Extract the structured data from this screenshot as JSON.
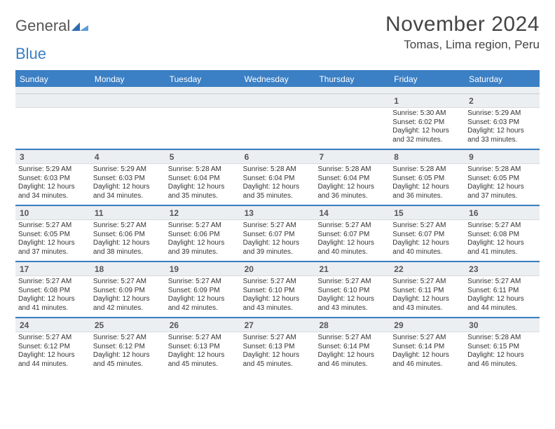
{
  "logo": {
    "part1": "General",
    "part2": "Blue"
  },
  "title": "November 2024",
  "location": "Tomas, Lima region, Peru",
  "colors": {
    "header_bar": "#3b7fc4",
    "band": "#eceff2",
    "text": "#333333",
    "title_text": "#444444"
  },
  "typography": {
    "title_fontsize": 30,
    "location_fontsize": 17,
    "weekday_fontsize": 12,
    "daynum_fontsize": 12,
    "detail_fontsize": 10
  },
  "weekdays": [
    "Sunday",
    "Monday",
    "Tuesday",
    "Wednesday",
    "Thursday",
    "Friday",
    "Saturday"
  ],
  "weeks": [
    [
      {
        "blank": true
      },
      {
        "blank": true
      },
      {
        "blank": true
      },
      {
        "blank": true
      },
      {
        "blank": true
      },
      {
        "day": "1",
        "sunrise": "Sunrise: 5:30 AM",
        "sunset": "Sunset: 6:02 PM",
        "daylight1": "Daylight: 12 hours",
        "daylight2": "and 32 minutes."
      },
      {
        "day": "2",
        "sunrise": "Sunrise: 5:29 AM",
        "sunset": "Sunset: 6:03 PM",
        "daylight1": "Daylight: 12 hours",
        "daylight2": "and 33 minutes."
      }
    ],
    [
      {
        "day": "3",
        "sunrise": "Sunrise: 5:29 AM",
        "sunset": "Sunset: 6:03 PM",
        "daylight1": "Daylight: 12 hours",
        "daylight2": "and 34 minutes."
      },
      {
        "day": "4",
        "sunrise": "Sunrise: 5:29 AM",
        "sunset": "Sunset: 6:03 PM",
        "daylight1": "Daylight: 12 hours",
        "daylight2": "and 34 minutes."
      },
      {
        "day": "5",
        "sunrise": "Sunrise: 5:28 AM",
        "sunset": "Sunset: 6:04 PM",
        "daylight1": "Daylight: 12 hours",
        "daylight2": "and 35 minutes."
      },
      {
        "day": "6",
        "sunrise": "Sunrise: 5:28 AM",
        "sunset": "Sunset: 6:04 PM",
        "daylight1": "Daylight: 12 hours",
        "daylight2": "and 35 minutes."
      },
      {
        "day": "7",
        "sunrise": "Sunrise: 5:28 AM",
        "sunset": "Sunset: 6:04 PM",
        "daylight1": "Daylight: 12 hours",
        "daylight2": "and 36 minutes."
      },
      {
        "day": "8",
        "sunrise": "Sunrise: 5:28 AM",
        "sunset": "Sunset: 6:05 PM",
        "daylight1": "Daylight: 12 hours",
        "daylight2": "and 36 minutes."
      },
      {
        "day": "9",
        "sunrise": "Sunrise: 5:28 AM",
        "sunset": "Sunset: 6:05 PM",
        "daylight1": "Daylight: 12 hours",
        "daylight2": "and 37 minutes."
      }
    ],
    [
      {
        "day": "10",
        "sunrise": "Sunrise: 5:27 AM",
        "sunset": "Sunset: 6:05 PM",
        "daylight1": "Daylight: 12 hours",
        "daylight2": "and 37 minutes."
      },
      {
        "day": "11",
        "sunrise": "Sunrise: 5:27 AM",
        "sunset": "Sunset: 6:06 PM",
        "daylight1": "Daylight: 12 hours",
        "daylight2": "and 38 minutes."
      },
      {
        "day": "12",
        "sunrise": "Sunrise: 5:27 AM",
        "sunset": "Sunset: 6:06 PM",
        "daylight1": "Daylight: 12 hours",
        "daylight2": "and 39 minutes."
      },
      {
        "day": "13",
        "sunrise": "Sunrise: 5:27 AM",
        "sunset": "Sunset: 6:07 PM",
        "daylight1": "Daylight: 12 hours",
        "daylight2": "and 39 minutes."
      },
      {
        "day": "14",
        "sunrise": "Sunrise: 5:27 AM",
        "sunset": "Sunset: 6:07 PM",
        "daylight1": "Daylight: 12 hours",
        "daylight2": "and 40 minutes."
      },
      {
        "day": "15",
        "sunrise": "Sunrise: 5:27 AM",
        "sunset": "Sunset: 6:07 PM",
        "daylight1": "Daylight: 12 hours",
        "daylight2": "and 40 minutes."
      },
      {
        "day": "16",
        "sunrise": "Sunrise: 5:27 AM",
        "sunset": "Sunset: 6:08 PM",
        "daylight1": "Daylight: 12 hours",
        "daylight2": "and 41 minutes."
      }
    ],
    [
      {
        "day": "17",
        "sunrise": "Sunrise: 5:27 AM",
        "sunset": "Sunset: 6:08 PM",
        "daylight1": "Daylight: 12 hours",
        "daylight2": "and 41 minutes."
      },
      {
        "day": "18",
        "sunrise": "Sunrise: 5:27 AM",
        "sunset": "Sunset: 6:09 PM",
        "daylight1": "Daylight: 12 hours",
        "daylight2": "and 42 minutes."
      },
      {
        "day": "19",
        "sunrise": "Sunrise: 5:27 AM",
        "sunset": "Sunset: 6:09 PM",
        "daylight1": "Daylight: 12 hours",
        "daylight2": "and 42 minutes."
      },
      {
        "day": "20",
        "sunrise": "Sunrise: 5:27 AM",
        "sunset": "Sunset: 6:10 PM",
        "daylight1": "Daylight: 12 hours",
        "daylight2": "and 43 minutes."
      },
      {
        "day": "21",
        "sunrise": "Sunrise: 5:27 AM",
        "sunset": "Sunset: 6:10 PM",
        "daylight1": "Daylight: 12 hours",
        "daylight2": "and 43 minutes."
      },
      {
        "day": "22",
        "sunrise": "Sunrise: 5:27 AM",
        "sunset": "Sunset: 6:11 PM",
        "daylight1": "Daylight: 12 hours",
        "daylight2": "and 43 minutes."
      },
      {
        "day": "23",
        "sunrise": "Sunrise: 5:27 AM",
        "sunset": "Sunset: 6:11 PM",
        "daylight1": "Daylight: 12 hours",
        "daylight2": "and 44 minutes."
      }
    ],
    [
      {
        "day": "24",
        "sunrise": "Sunrise: 5:27 AM",
        "sunset": "Sunset: 6:12 PM",
        "daylight1": "Daylight: 12 hours",
        "daylight2": "and 44 minutes."
      },
      {
        "day": "25",
        "sunrise": "Sunrise: 5:27 AM",
        "sunset": "Sunset: 6:12 PM",
        "daylight1": "Daylight: 12 hours",
        "daylight2": "and 45 minutes."
      },
      {
        "day": "26",
        "sunrise": "Sunrise: 5:27 AM",
        "sunset": "Sunset: 6:13 PM",
        "daylight1": "Daylight: 12 hours",
        "daylight2": "and 45 minutes."
      },
      {
        "day": "27",
        "sunrise": "Sunrise: 5:27 AM",
        "sunset": "Sunset: 6:13 PM",
        "daylight1": "Daylight: 12 hours",
        "daylight2": "and 45 minutes."
      },
      {
        "day": "28",
        "sunrise": "Sunrise: 5:27 AM",
        "sunset": "Sunset: 6:14 PM",
        "daylight1": "Daylight: 12 hours",
        "daylight2": "and 46 minutes."
      },
      {
        "day": "29",
        "sunrise": "Sunrise: 5:27 AM",
        "sunset": "Sunset: 6:14 PM",
        "daylight1": "Daylight: 12 hours",
        "daylight2": "and 46 minutes."
      },
      {
        "day": "30",
        "sunrise": "Sunrise: 5:28 AM",
        "sunset": "Sunset: 6:15 PM",
        "daylight1": "Daylight: 12 hours",
        "daylight2": "and 46 minutes."
      }
    ]
  ]
}
